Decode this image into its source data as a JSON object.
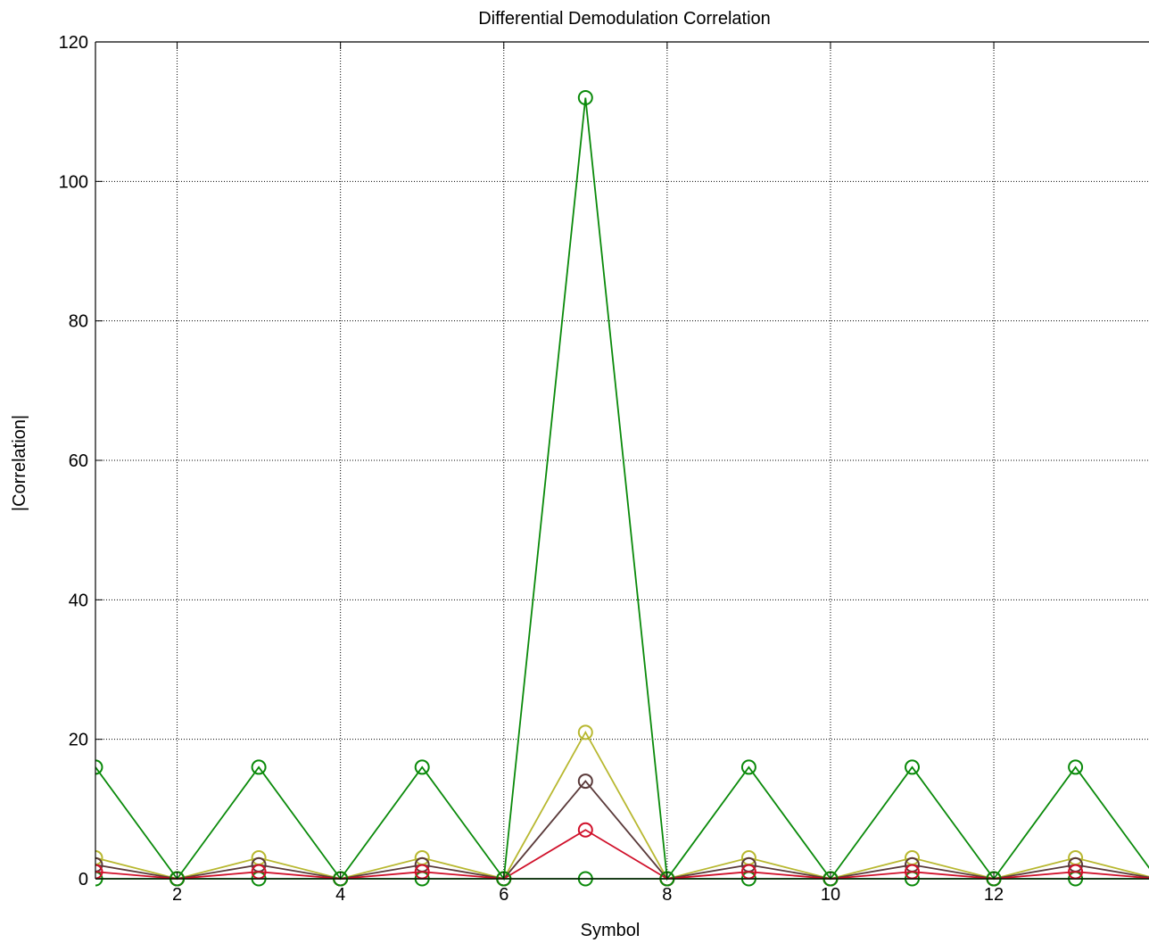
{
  "chart_data": {
    "type": "line",
    "title": "Differential Demodulation Correlation",
    "xlabel": "Symbol",
    "ylabel": "|Correlation|",
    "xlim": [
      1,
      13.9
    ],
    "ylim": [
      0,
      120
    ],
    "xticks": [
      2,
      4,
      6,
      8,
      10,
      12
    ],
    "yticks": [
      0,
      20,
      40,
      60,
      80,
      100,
      120
    ],
    "grid": true,
    "marker": "circle",
    "x": [
      1,
      2,
      3,
      4,
      5,
      6,
      7,
      8,
      9,
      10,
      11,
      12,
      13,
      14
    ],
    "series": [
      {
        "color": "#0a8a0a",
        "values": [
          16,
          0,
          16,
          0,
          16,
          0,
          112,
          0,
          16,
          0,
          16,
          0,
          16,
          0
        ]
      },
      {
        "color": "#b8b830",
        "values": [
          3,
          0,
          3,
          0,
          3,
          0,
          21,
          0,
          3,
          0,
          3,
          0,
          3,
          0
        ]
      },
      {
        "color": "#5a3a3a",
        "values": [
          2,
          0,
          2,
          0,
          2,
          0,
          14,
          0,
          2,
          0,
          2,
          0,
          2,
          0
        ]
      },
      {
        "color": "#d0102a",
        "values": [
          1,
          0,
          1,
          0,
          1,
          0,
          7,
          0,
          1,
          0,
          1,
          0,
          1,
          0
        ]
      },
      {
        "color": "#0a8a0a",
        "values": [
          0,
          0,
          0,
          0,
          0,
          0,
          0,
          0,
          0,
          0,
          0,
          0,
          0,
          0
        ]
      }
    ]
  }
}
